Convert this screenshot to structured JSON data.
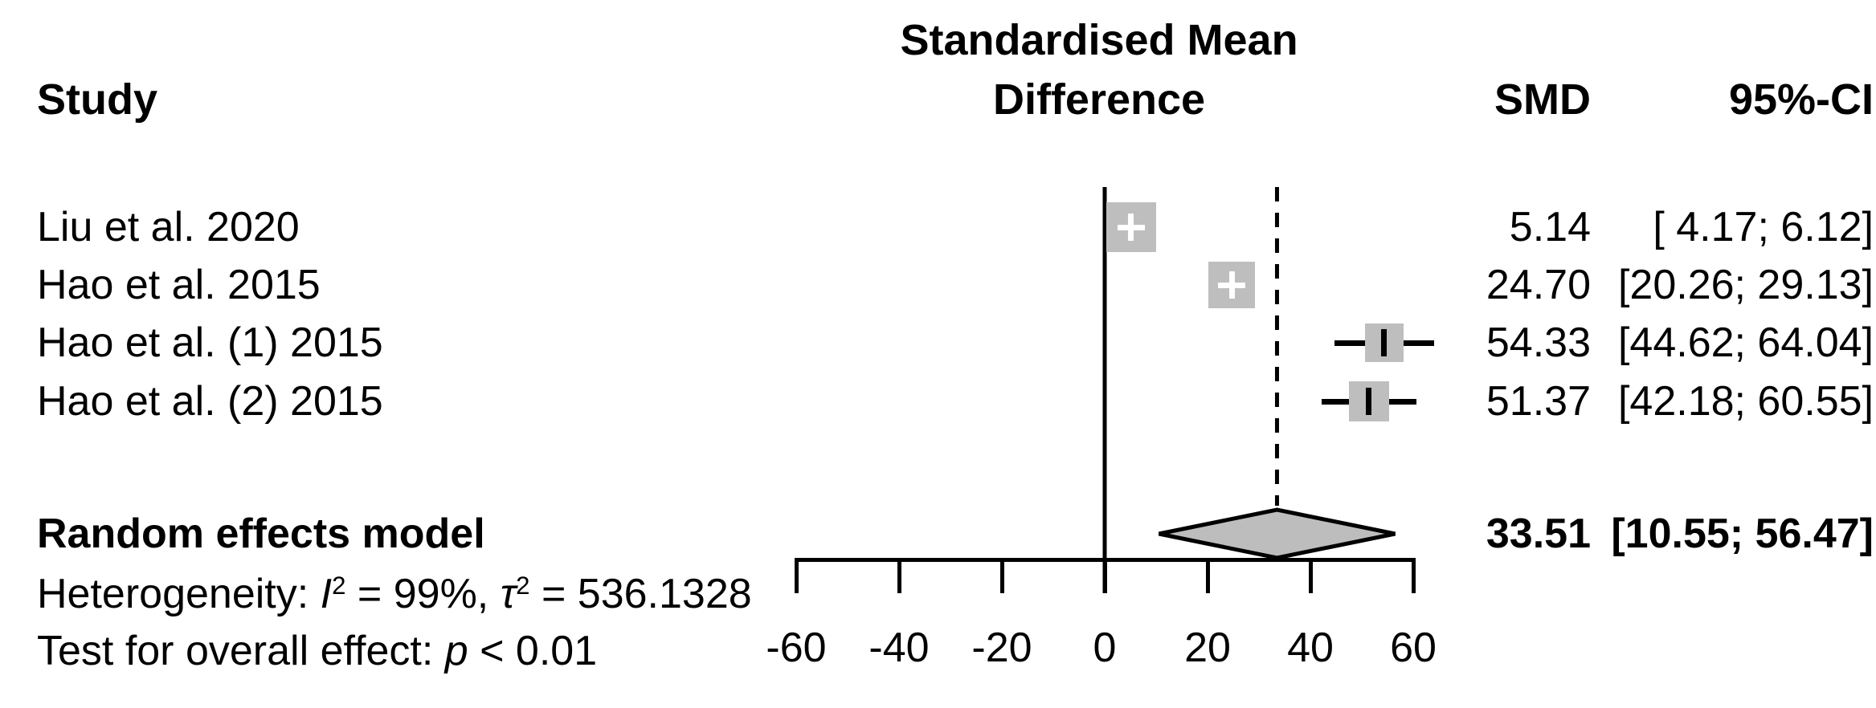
{
  "header": {
    "title_line1": "Standardised Mean",
    "title_line2": "Difference",
    "study_col": "Study",
    "smd_col": "SMD",
    "ci_col": "95%-CI"
  },
  "chart_data": {
    "type": "scatter",
    "subtype": "forest-plot",
    "title": "Standardised Mean Difference",
    "xlabel": "",
    "xlim": [
      -60,
      60
    ],
    "grid": false,
    "axis": {
      "ticks": [
        -60,
        -40,
        -20,
        0,
        20,
        40,
        60
      ],
      "tick_labels": [
        "-60",
        "-40",
        "-20",
        "0",
        "20",
        "40",
        "60"
      ]
    },
    "reference_line_x": 0,
    "dashed_line_x": 33.51,
    "studies": [
      {
        "label": "Liu et al. 2020",
        "smd": 5.14,
        "ci_low": 4.17,
        "ci_high": 6.12,
        "smd_text": "5.14",
        "ci_text": "[ 4.17; 6.12]",
        "marker_size_px": 62
      },
      {
        "label": "Hao et al. 2015",
        "smd": 24.7,
        "ci_low": 20.26,
        "ci_high": 29.13,
        "smd_text": "24.70",
        "ci_text": "[20.26; 29.13]",
        "marker_size_px": 58
      },
      {
        "label": "Hao et al. (1) 2015",
        "smd": 54.33,
        "ci_low": 44.62,
        "ci_high": 64.04,
        "smd_text": "54.33",
        "ci_text": "[44.62; 64.04]",
        "marker_size_px": 48
      },
      {
        "label": "Hao et al. (2) 2015",
        "smd": 51.37,
        "ci_low": 42.18,
        "ci_high": 60.55,
        "smd_text": "51.37",
        "ci_text": "[42.18; 60.55]",
        "marker_size_px": 50
      }
    ],
    "summary": {
      "label": "Random effects model",
      "smd": 33.51,
      "ci_low": 10.55,
      "ci_high": 56.47,
      "smd_text": "33.51",
      "ci_text": "[10.55; 56.47]"
    }
  },
  "footnotes": {
    "heterogeneity": {
      "prefix": "Heterogeneity: ",
      "i_symbol": "I",
      "i_sup": "2",
      "mid": " = 99%, ",
      "tau_symbol": "τ",
      "tau_sup": "2",
      "suffix": " = 536.1328"
    },
    "overall_test": {
      "prefix": "Test for overall effect:  ",
      "p_symbol": "p",
      "suffix": " < 0.01"
    }
  },
  "colors": {
    "marker_fill": "#bebebe",
    "diamond_fill": "#bdbdbd",
    "line": "#000000",
    "text": "#000000",
    "background": "#ffffff",
    "estimate_plus_on_square": "#ffffff"
  }
}
